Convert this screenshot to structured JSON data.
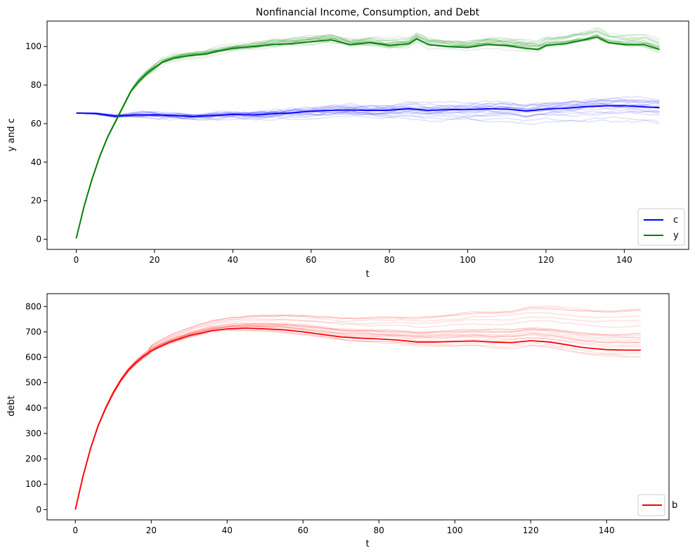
{
  "chart_data": [
    {
      "type": "line",
      "title": "Nonfinancial Income, Consumption, and Debt",
      "xlabel": "t",
      "ylabel": "y and c",
      "xlim": [
        -7.45,
        156.45
      ],
      "ylim": [
        -5.25,
        113.2
      ],
      "xticks": [
        0,
        20,
        40,
        60,
        80,
        100,
        120,
        140
      ],
      "yticks": [
        0,
        20,
        40,
        60,
        80,
        100
      ],
      "grid": false,
      "legend_position": "lower right",
      "series": [
        {
          "name": "c",
          "color": "#0000ff",
          "x": [
            0,
            5,
            10,
            15,
            20,
            25,
            30,
            35,
            40,
            45,
            50,
            55,
            60,
            65,
            70,
            75,
            80,
            85,
            90,
            95,
            100,
            105,
            110,
            115,
            120,
            125,
            130,
            135,
            140,
            145,
            149
          ],
          "y": [
            65.5,
            65.2,
            63.8,
            64.5,
            64.6,
            64.2,
            63.7,
            64.2,
            64.7,
            64.5,
            65.0,
            65.6,
            66.4,
            66.9,
            67.1,
            66.8,
            67.0,
            67.7,
            66.9,
            67.2,
            67.3,
            67.7,
            67.5,
            66.6,
            67.5,
            68.0,
            68.8,
            69.2,
            69.3,
            68.7,
            68.3
          ]
        },
        {
          "name": "y",
          "color": "#008000",
          "x": [
            0,
            2,
            4,
            6,
            8,
            10,
            12,
            14,
            16,
            18,
            20,
            22,
            25,
            28,
            30,
            33,
            36,
            40,
            45,
            50,
            55,
            60,
            65,
            70,
            75,
            80,
            85,
            87,
            90,
            95,
            100,
            105,
            110,
            115,
            118,
            120,
            125,
            130,
            133,
            136,
            140,
            145,
            149
          ],
          "y": [
            0.5,
            17,
            31,
            43,
            53,
            61,
            69,
            77,
            82,
            86,
            89,
            92,
            94,
            95,
            95.5,
            96,
            97.5,
            99,
            100,
            101,
            101.5,
            102.5,
            103.5,
            101,
            102,
            100.5,
            101.5,
            104,
            101,
            100,
            99.5,
            101,
            100.5,
            99,
            98.5,
            100.5,
            101.5,
            103.5,
            105,
            102,
            101,
            101,
            98.5
          ]
        }
      ],
      "simulation_paths": {
        "description_count": 20,
        "c_band": [
          60,
          73
        ],
        "y_band": [
          96,
          106
        ]
      }
    },
    {
      "type": "line",
      "title": "",
      "xlabel": "t",
      "ylabel": "debt",
      "xlim": [
        -7.45,
        156.45
      ],
      "ylim": [
        -40.5,
        850.5
      ],
      "xticks": [
        0,
        20,
        40,
        60,
        80,
        100,
        120,
        140
      ],
      "yticks": [
        0,
        100,
        200,
        300,
        400,
        500,
        600,
        700,
        800
      ],
      "grid": false,
      "legend_position": "lower right",
      "series": [
        {
          "name": "b",
          "color": "#ff0000",
          "x": [
            0,
            2,
            4,
            6,
            8,
            10,
            12,
            14,
            16,
            18,
            20,
            22,
            25,
            28,
            30,
            33,
            36,
            40,
            45,
            50,
            55,
            60,
            65,
            70,
            75,
            80,
            85,
            90,
            95,
            100,
            105,
            110,
            115,
            120,
            125,
            130,
            133,
            136,
            140,
            145,
            149
          ],
          "y": [
            0,
            130,
            240,
            330,
            400,
            460,
            510,
            550,
            580,
            605,
            625,
            640,
            660,
            675,
            685,
            695,
            705,
            712,
            715,
            712,
            708,
            700,
            690,
            680,
            675,
            672,
            668,
            660,
            660,
            662,
            664,
            660,
            658,
            665,
            660,
            648,
            640,
            635,
            630,
            628,
            628
          ]
        }
      ],
      "simulation_paths": {
        "description_count": 20,
        "end_band": [
          572,
          815
        ]
      }
    }
  ]
}
